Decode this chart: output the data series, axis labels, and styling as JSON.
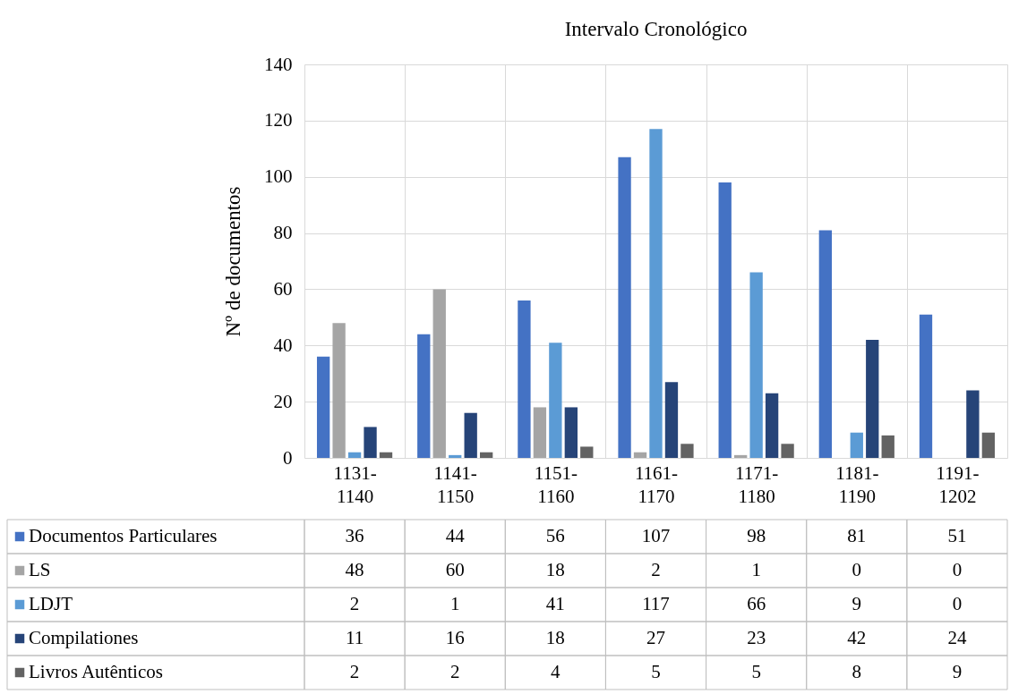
{
  "chart_data": {
    "type": "bar",
    "title": "Intervalo Cronológico",
    "ylabel": "Nº de documentos",
    "categories": [
      "1131-1140",
      "1141-1150",
      "1151-1160",
      "1161-1170",
      "1171-1180",
      "1181-1190",
      "1191-1202"
    ],
    "series": [
      {
        "name": "Documentos Particulares",
        "color": "#4472c4",
        "values": [
          36,
          44,
          56,
          107,
          98,
          81,
          51
        ]
      },
      {
        "name": "LS",
        "color": "#a5a5a5",
        "values": [
          48,
          60,
          18,
          2,
          1,
          0,
          0
        ]
      },
      {
        "name": "LDJT",
        "color": "#5b9bd5",
        "values": [
          2,
          1,
          41,
          117,
          66,
          9,
          0
        ]
      },
      {
        "name": "Compilationes",
        "color": "#264478",
        "values": [
          11,
          16,
          18,
          27,
          23,
          42,
          24
        ]
      },
      {
        "name": "Livros Autênticos",
        "color": "#636363",
        "values": [
          2,
          2,
          4,
          5,
          5,
          8,
          9
        ]
      }
    ],
    "ylim": [
      0,
      140
    ],
    "yticks": [
      0,
      20,
      40,
      60,
      80,
      100,
      120,
      140
    ],
    "grid": true,
    "data_labels": true,
    "legend": "bottom left"
  }
}
